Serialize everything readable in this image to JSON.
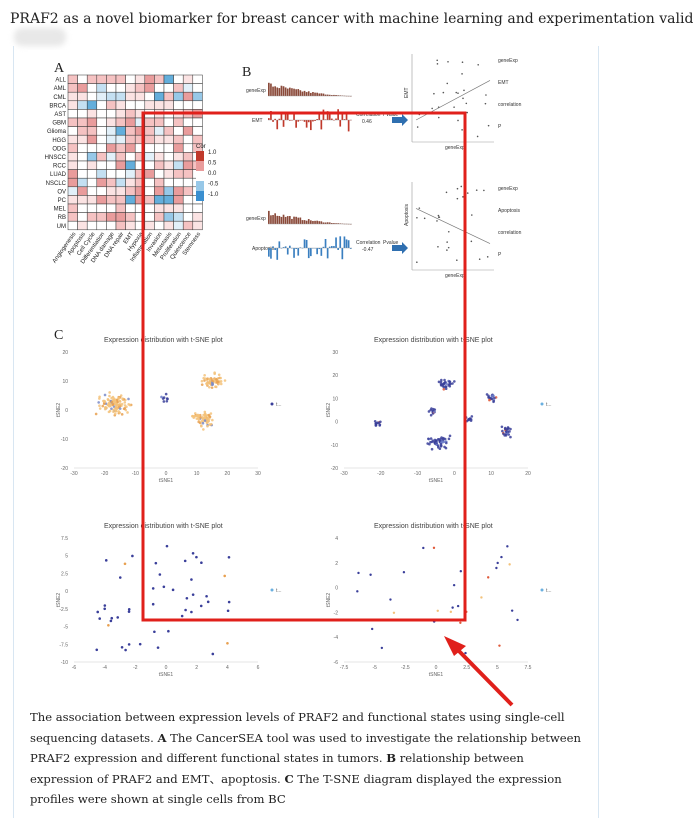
{
  "page": {
    "title": "PRAF2 as a novel biomarker for breast cancer with machine learning and experimentation valid"
  },
  "figure": {
    "panel_a": {
      "letter": "A",
      "row_labels": [
        "ALL",
        "AML",
        "CML",
        "BRCA",
        "AST",
        "GBM",
        "Glioma",
        "HGG",
        "ODG",
        "HNSCC",
        "RCC",
        "LUAD",
        "NSCLC",
        "OV",
        "PC",
        "MEL",
        "RB",
        "UM"
      ],
      "col_labels": [
        "Angiogenesis",
        "Apoptosis",
        "Cell Cycle",
        "Differentiation",
        "DNA damage",
        "DNA repair",
        "EMT",
        "Hypoxia",
        "Inflammation",
        "Invasion",
        "Metastasis",
        "Proliferation",
        "Quiescence",
        "Stemness"
      ],
      "legend_title": "Cor",
      "legend_ticks": [
        "1.0",
        "0.5",
        "0.0",
        "-0.5",
        "-1.0"
      ]
    },
    "panel_b": {
      "letter": "B",
      "top": {
        "track1": "geneExp",
        "track2": "EMT",
        "corr_label": "Correlation",
        "corr_value": "0.46",
        "p_label": "Pvalue",
        "legend": [
          "geneExp",
          "EMT",
          "correlation",
          "P"
        ],
        "x_axis": "geneExp",
        "y_axis": "EMT"
      },
      "bottom": {
        "track1": "geneExp",
        "track2": "Apoptosis",
        "corr_label": "Correlation",
        "corr_value": "-0.47",
        "p_label": "Pvalue",
        "legend": [
          "geneExp",
          "Apoptosis",
          "correlation",
          "P"
        ],
        "x_axis": "geneExp",
        "y_axis": "Apoptosis"
      }
    },
    "panel_c": {
      "letter": "C",
      "plot_title": "Expression distribution with t-SNE plot",
      "x_label": "tSNE1",
      "y_label": "tSNE2",
      "legend_text": "t...",
      "plots": [
        {
          "xticks": [
            "-30",
            "-20",
            "-10",
            "0",
            "10",
            "20",
            "30"
          ],
          "yticks": [
            "20",
            "10",
            "0",
            "-10",
            "-20"
          ]
        },
        {
          "xticks": [
            "-30",
            "-20",
            "-10",
            "0",
            "10",
            "20"
          ],
          "yticks": [
            "30",
            "20",
            "10",
            "0",
            "-10",
            "-20"
          ]
        },
        {
          "xticks": [
            "-6",
            "-4",
            "-2",
            "0",
            "2",
            "4",
            "6"
          ],
          "yticks": [
            "7.5",
            "5",
            "2.5",
            "0",
            "-2.5",
            "-5",
            "-7.5",
            "-10"
          ]
        },
        {
          "xticks": [
            "-7.5",
            "-5",
            "-2.5",
            "0",
            "2.5",
            "5",
            "7.5"
          ],
          "yticks": [
            "4",
            "2",
            "0",
            "-2",
            "-4",
            "-6"
          ]
        }
      ]
    },
    "colors": {
      "highlight_box": "#e0201b",
      "arrow": "#e0201b",
      "heat_pos": "#c0392b",
      "heat_neg": "#3a8fd0",
      "dot_orange": "#f0b060",
      "dot_navy": "#3a3f9a"
    }
  },
  "caption": {
    "lead": "The association between expression levels of PRAF2 and functional states using single-cell sequencing datasets. ",
    "a_letter": "A",
    "a_text": " The CancerSEA tool was used to investigate the relationship between PRAF2 expression and different functional states in tumors. ",
    "b_letter": "B",
    "b_text": " relationship between expression of PRAF2 and EMT、apoptosis. ",
    "c_letter": "C",
    "c_text": " The T-SNE diagram displayed the expression profiles were shown at single cells from BC"
  }
}
